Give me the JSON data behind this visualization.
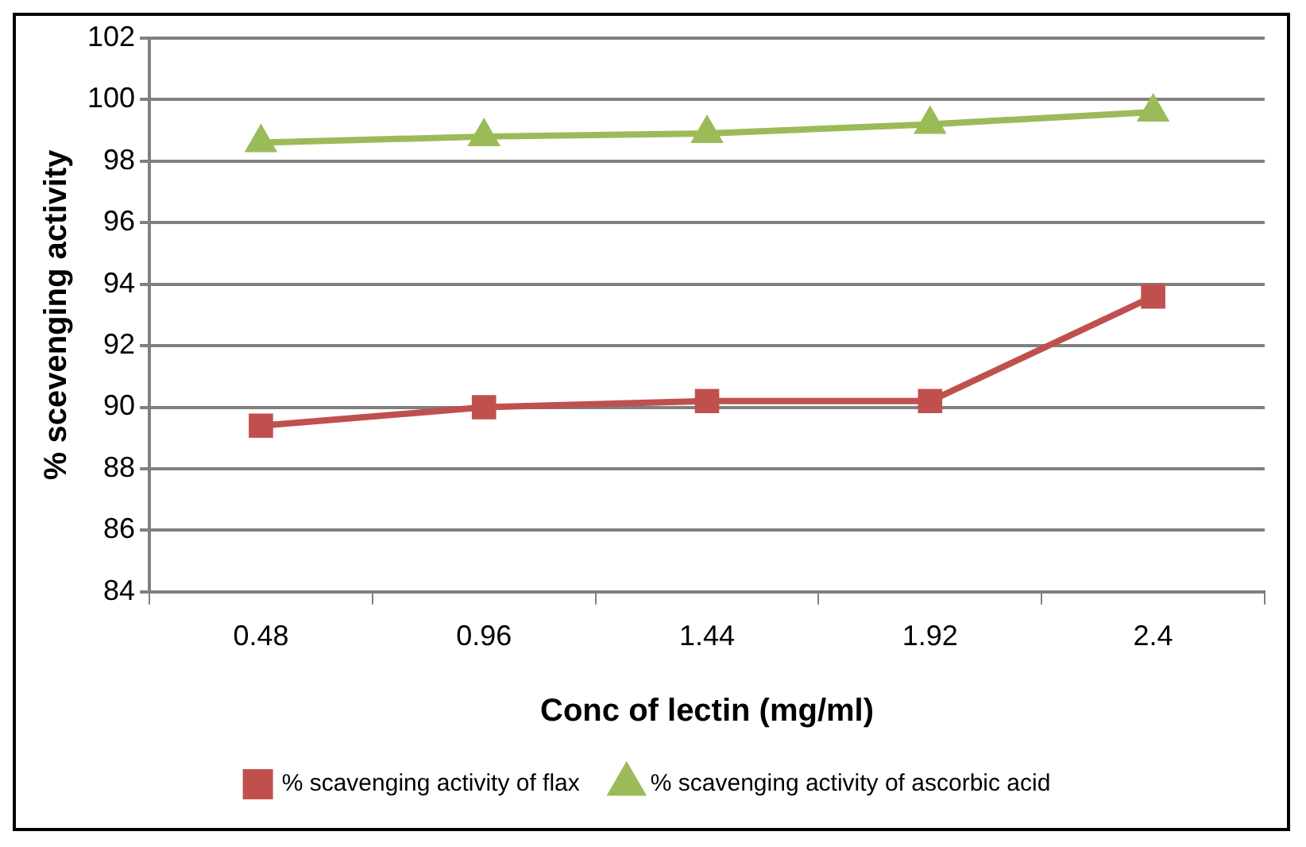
{
  "chart_data": {
    "type": "line",
    "xlabel": "Conc of lectin (mg/ml)",
    "ylabel": "% scevenging activity",
    "categories": [
      "0.48",
      "0.96",
      "1.44",
      "1.92",
      "2.4"
    ],
    "series": [
      {
        "name": "% scavenging activity of flax",
        "color": "#c0504d",
        "marker": "square",
        "values": [
          89.4,
          90.0,
          90.2,
          90.2,
          93.6
        ]
      },
      {
        "name": "% scavenging activity of ascorbic acid",
        "color": "#9bbb59",
        "marker": "triangle",
        "values": [
          98.6,
          98.8,
          98.9,
          99.2,
          99.6
        ]
      }
    ],
    "ylim": [
      84,
      102
    ],
    "yticks": [
      84,
      86,
      88,
      90,
      92,
      94,
      96,
      98,
      100,
      102
    ],
    "grid": "y",
    "legend": "bottom",
    "line_style": "solid"
  }
}
